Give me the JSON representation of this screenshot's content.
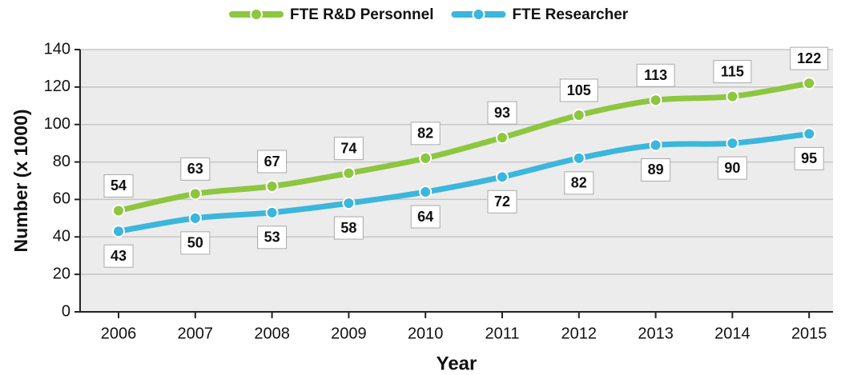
{
  "chart_data": {
    "type": "line",
    "x_label": "Year",
    "y_label": "Number (x 1000)",
    "categories": [
      "2006",
      "2007",
      "2008",
      "2009",
      "2010",
      "2011",
      "2012",
      "2013",
      "2014",
      "2015"
    ],
    "series": [
      {
        "name": "FTE R&D Personnel",
        "color": "#8dc63f",
        "values": [
          54,
          63,
          67,
          74,
          82,
          93,
          105,
          113,
          115,
          122
        ]
      },
      {
        "name": "FTE Researcher",
        "color": "#3bb6dc",
        "values": [
          43,
          50,
          53,
          58,
          64,
          72,
          82,
          89,
          90,
          95
        ]
      }
    ],
    "ylim": [
      0,
      140
    ],
    "yticks": [
      0,
      20,
      40,
      60,
      80,
      100,
      120,
      140
    ],
    "grid": true,
    "legend": "top"
  }
}
